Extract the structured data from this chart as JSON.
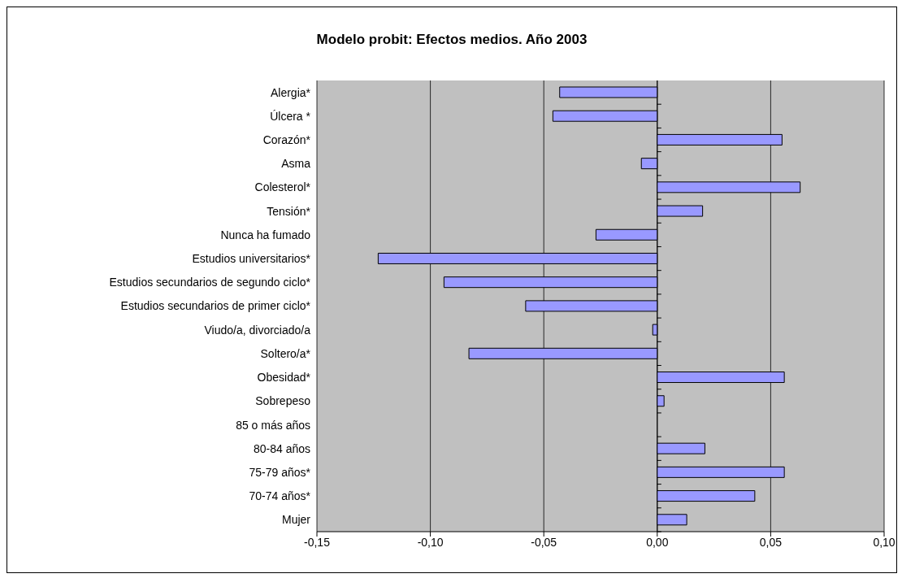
{
  "chart_data": {
    "type": "bar",
    "orientation": "horizontal",
    "title": "Modelo probit: Efectos medios. Año 2003",
    "categories": [
      "Alergia*",
      "Úlcera *",
      "Corazón*",
      "Asma",
      "Colesterol*",
      "Tensión*",
      "Nunca ha fumado",
      "Estudios universitarios*",
      "Estudios secundarios de segundo ciclo*",
      "Estudios secundarios de primer ciclo*",
      "Viudo/a, divorciado/a",
      "Soltero/a*",
      "Obesidad*",
      "Sobrepeso",
      "85 o más años",
      "80-84 años",
      "75-79 años*",
      "70-74 años*",
      "Mujer"
    ],
    "values": [
      -0.043,
      -0.046,
      0.055,
      -0.007,
      0.063,
      0.02,
      -0.027,
      -0.123,
      -0.094,
      -0.058,
      -0.002,
      -0.083,
      0.056,
      0.003,
      null,
      0.021,
      0.056,
      0.043,
      0.013
    ],
    "color": "#9999ff",
    "xlim": [
      -0.15,
      0.1
    ],
    "xticks": [
      {
        "value": -0.15,
        "label": "-0,15"
      },
      {
        "value": -0.1,
        "label": "-0,10"
      },
      {
        "value": -0.05,
        "label": "-0,05"
      },
      {
        "value": 0,
        "label": "0,00"
      },
      {
        "value": 0.05,
        "label": "0,05"
      },
      {
        "value": 0.1,
        "label": "0,10"
      }
    ],
    "grid": "x"
  }
}
